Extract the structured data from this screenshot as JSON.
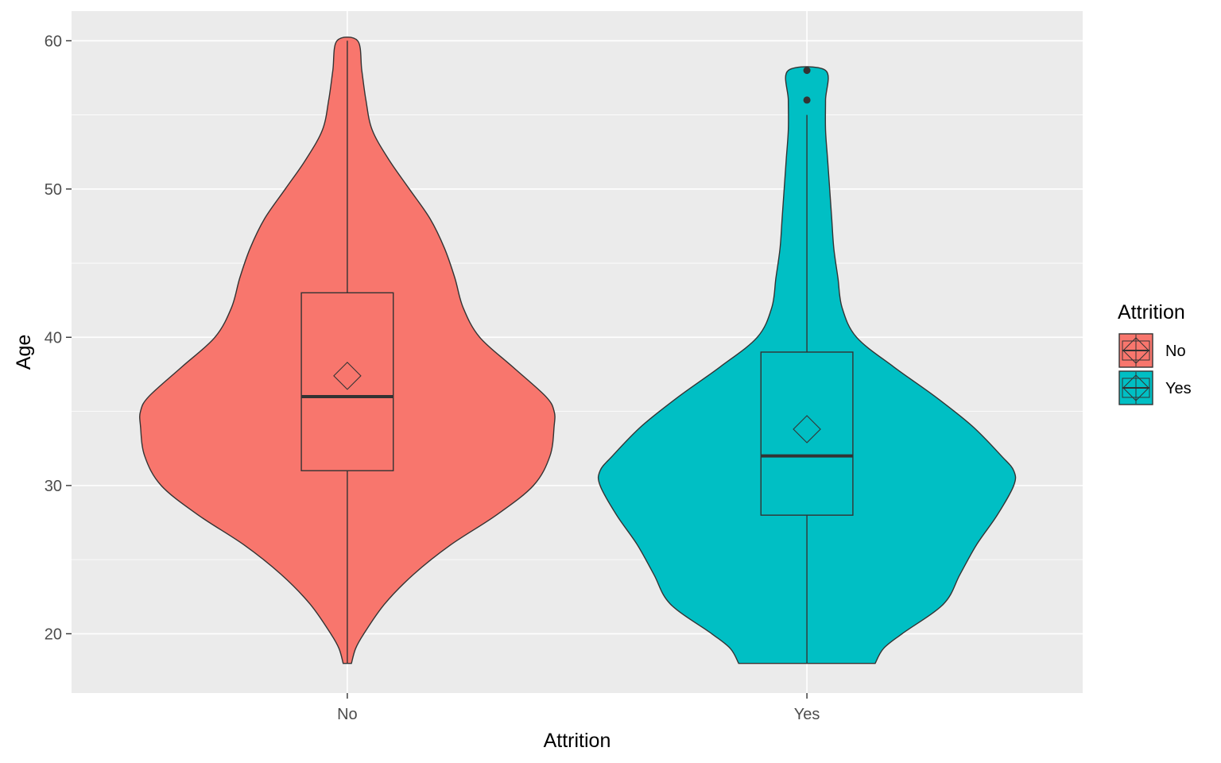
{
  "chart_data": {
    "type": "violin",
    "xlabel": "Attrition",
    "ylabel": "Age",
    "ylim": [
      16,
      62
    ],
    "y_ticks": [
      20,
      30,
      40,
      50,
      60
    ],
    "y_tick_labels": [
      "20",
      "30",
      "40",
      "50",
      "60"
    ],
    "categories": [
      "No",
      "Yes"
    ],
    "grid": true,
    "legend": {
      "title": "Attrition",
      "position": "right",
      "entries": [
        "No",
        "Yes"
      ]
    },
    "series": [
      {
        "name": "No",
        "color": "#F8766D",
        "box": {
          "q1": 31,
          "median": 36,
          "q3": 43,
          "whisker_low": 18,
          "whisker_high": 60
        },
        "mean": 37.4,
        "outliers": [],
        "density_profile": [
          [
            18,
            0.02
          ],
          [
            19,
            0.04
          ],
          [
            20,
            0.08
          ],
          [
            22,
            0.18
          ],
          [
            24,
            0.32
          ],
          [
            26,
            0.5
          ],
          [
            28,
            0.72
          ],
          [
            30,
            0.9
          ],
          [
            32,
            0.98
          ],
          [
            34,
            1.0
          ],
          [
            35,
            1.0
          ],
          [
            36,
            0.96
          ],
          [
            38,
            0.8
          ],
          [
            40,
            0.64
          ],
          [
            42,
            0.56
          ],
          [
            44,
            0.52
          ],
          [
            46,
            0.47
          ],
          [
            48,
            0.4
          ],
          [
            50,
            0.3
          ],
          [
            52,
            0.2
          ],
          [
            54,
            0.12
          ],
          [
            56,
            0.09
          ],
          [
            58,
            0.07
          ],
          [
            60,
            0.05
          ]
        ]
      },
      {
        "name": "Yes",
        "color": "#00BFC4",
        "box": {
          "q1": 28,
          "median": 32,
          "q3": 39,
          "whisker_low": 18,
          "whisker_high": 55
        },
        "mean": 33.8,
        "outliers": [
          56,
          58
        ],
        "density_profile": [
          [
            18,
            0.33
          ],
          [
            19,
            0.37
          ],
          [
            20,
            0.46
          ],
          [
            22,
            0.66
          ],
          [
            24,
            0.74
          ],
          [
            26,
            0.82
          ],
          [
            28,
            0.92
          ],
          [
            30,
            1.0
          ],
          [
            31,
            1.0
          ],
          [
            32,
            0.94
          ],
          [
            34,
            0.8
          ],
          [
            36,
            0.62
          ],
          [
            38,
            0.42
          ],
          [
            40,
            0.24
          ],
          [
            42,
            0.17
          ],
          [
            44,
            0.15
          ],
          [
            46,
            0.13
          ],
          [
            48,
            0.12
          ],
          [
            50,
            0.11
          ],
          [
            52,
            0.1
          ],
          [
            54,
            0.09
          ],
          [
            56,
            0.09
          ],
          [
            58,
            0.09
          ]
        ]
      }
    ]
  }
}
